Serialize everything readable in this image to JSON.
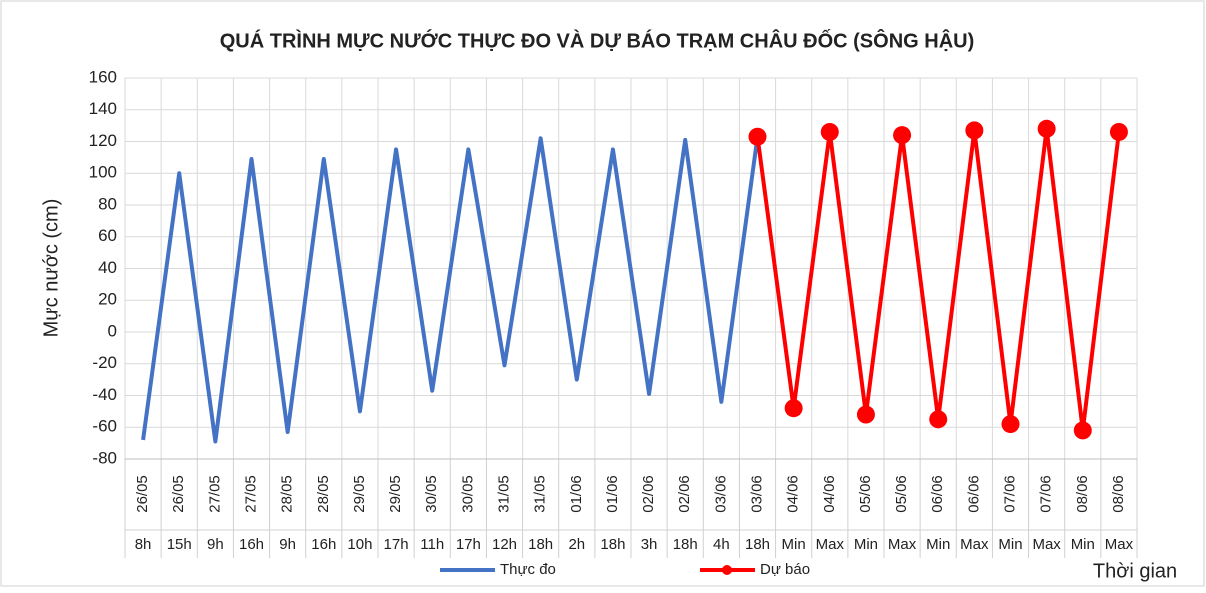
{
  "chart_data": {
    "type": "line",
    "title": "QUÁ TRÌNH MỰC NƯỚC THỰC ĐO VÀ DỰ BÁO TRẠM CHÂU ĐỐC (SÔNG HẬU)",
    "x_label": "Thời gian",
    "y_label": "Mực nước (cm)",
    "categories": [
      "26/05",
      "26/05",
      "27/05",
      "27/05",
      "28/05",
      "28/05",
      "29/05",
      "29/05",
      "30/05",
      "30/05",
      "31/05",
      "31/05",
      "01/06",
      "01/06",
      "02/06",
      "02/06",
      "03/06",
      "03/06",
      "04/06",
      "04/06",
      "05/06",
      "05/06",
      "06/06",
      "06/06",
      "07/06",
      "07/06",
      "08/06",
      "08/06"
    ],
    "category_times": [
      "8h",
      "15h",
      "9h",
      "16h",
      "9h",
      "16h",
      "10h",
      "17h",
      "11h",
      "17h",
      "12h",
      "18h",
      "2h",
      "18h",
      "3h",
      "18h",
      "4h",
      "18h",
      "Min",
      "Max",
      "Min",
      "Max",
      "Min",
      "Max",
      "Min",
      "Max",
      "Min",
      "Max"
    ],
    "series": [
      {
        "name": "Thực đo",
        "color": "#4472c4",
        "marker": false,
        "values": [
          -68,
          100,
          -69,
          109,
          -63,
          109,
          -50,
          115,
          -37,
          115,
          -21,
          122,
          -30,
          115,
          -39,
          121,
          -44,
          123,
          null,
          null,
          null,
          null,
          null,
          null,
          null,
          null,
          null,
          null
        ]
      },
      {
        "name": "Dự báo",
        "color": "#ff0000",
        "marker": true,
        "values": [
          null,
          null,
          null,
          null,
          null,
          null,
          null,
          null,
          null,
          null,
          null,
          null,
          null,
          null,
          null,
          null,
          null,
          123,
          -48,
          126,
          -52,
          124,
          -55,
          127,
          -58,
          128,
          -62,
          126
        ]
      }
    ],
    "ylim": [
      -80,
      160
    ],
    "yticks": [
      -80,
      -60,
      -40,
      -20,
      0,
      20,
      40,
      60,
      80,
      100,
      120,
      140,
      160
    ],
    "grid": true
  }
}
